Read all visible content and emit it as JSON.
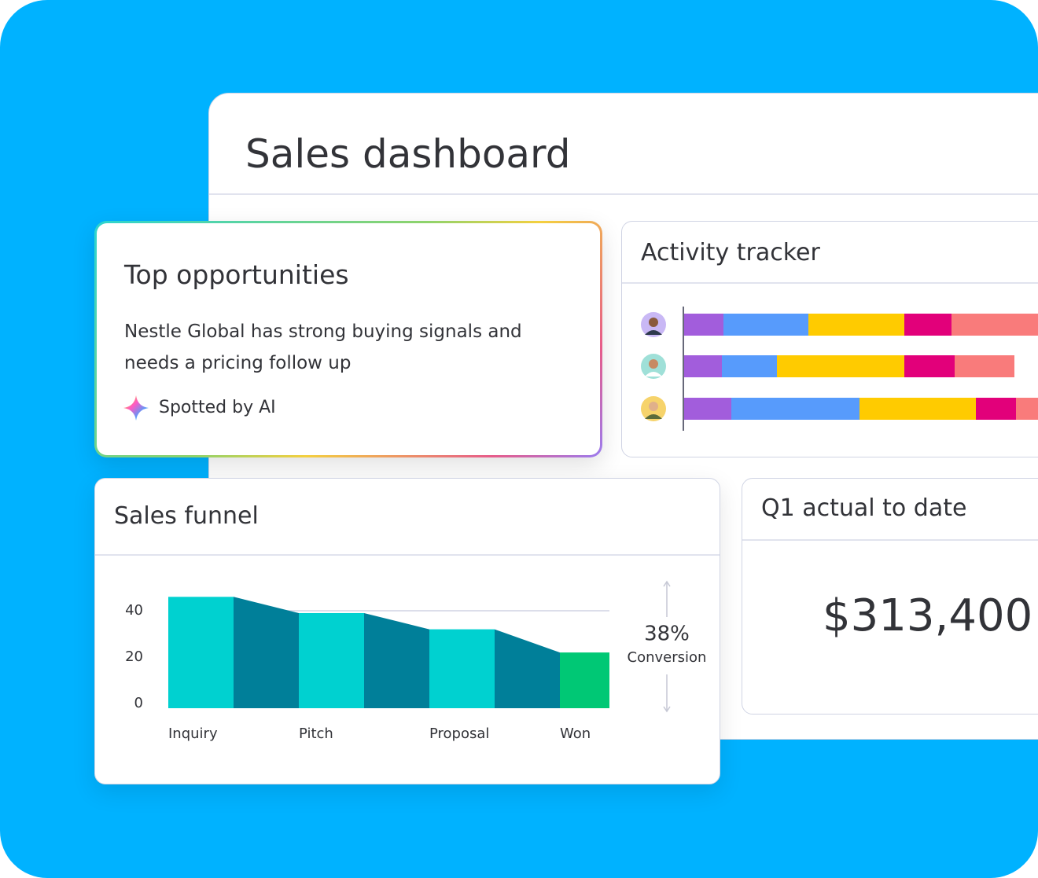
{
  "header": {
    "title": "Sales dashboard"
  },
  "top_opportunities": {
    "title": "Top opportunities",
    "text": "Nestle Global has strong buying signals and needs a pricing follow up",
    "badge": "Spotted by AI"
  },
  "q1": {
    "title": "Q1 actual to date",
    "value": "$313,400"
  },
  "conversion": {
    "value": "38%",
    "label": "Conversion"
  },
  "chart_data": [
    {
      "type": "bar",
      "orientation": "horizontal",
      "stacked": true,
      "title": "Activity tracker",
      "categories": [
        null,
        null,
        null
      ],
      "xlim": [
        0,
        45
      ],
      "series": [
        {
          "color": "#a25ddc",
          "values": [
            5,
            4.8,
            6
          ]
        },
        {
          "color": "#579bfc",
          "values": [
            10.8,
            7,
            16.3
          ]
        },
        {
          "color": "#ffcb00",
          "values": [
            12.2,
            16.2,
            14.8
          ]
        },
        {
          "color": "#e2007a",
          "values": [
            6,
            6.4,
            5.1
          ]
        },
        {
          "color": "#f97b7b",
          "values": [
            11,
            7.6,
            2.8
          ]
        }
      ]
    },
    {
      "type": "funnel",
      "title": "Sales funnel",
      "categories": [
        "Inquiry",
        "Pitch",
        "Proposal",
        "Won"
      ],
      "values": [
        46,
        39,
        32,
        22
      ],
      "colors": [
        "#00d1d0",
        "#00d1d0",
        "#00d1d0",
        "#00c875"
      ],
      "connector_color": "#007f99",
      "ylim": [
        0,
        50
      ],
      "yticks": [
        0,
        20,
        40
      ],
      "grid": true
    }
  ]
}
